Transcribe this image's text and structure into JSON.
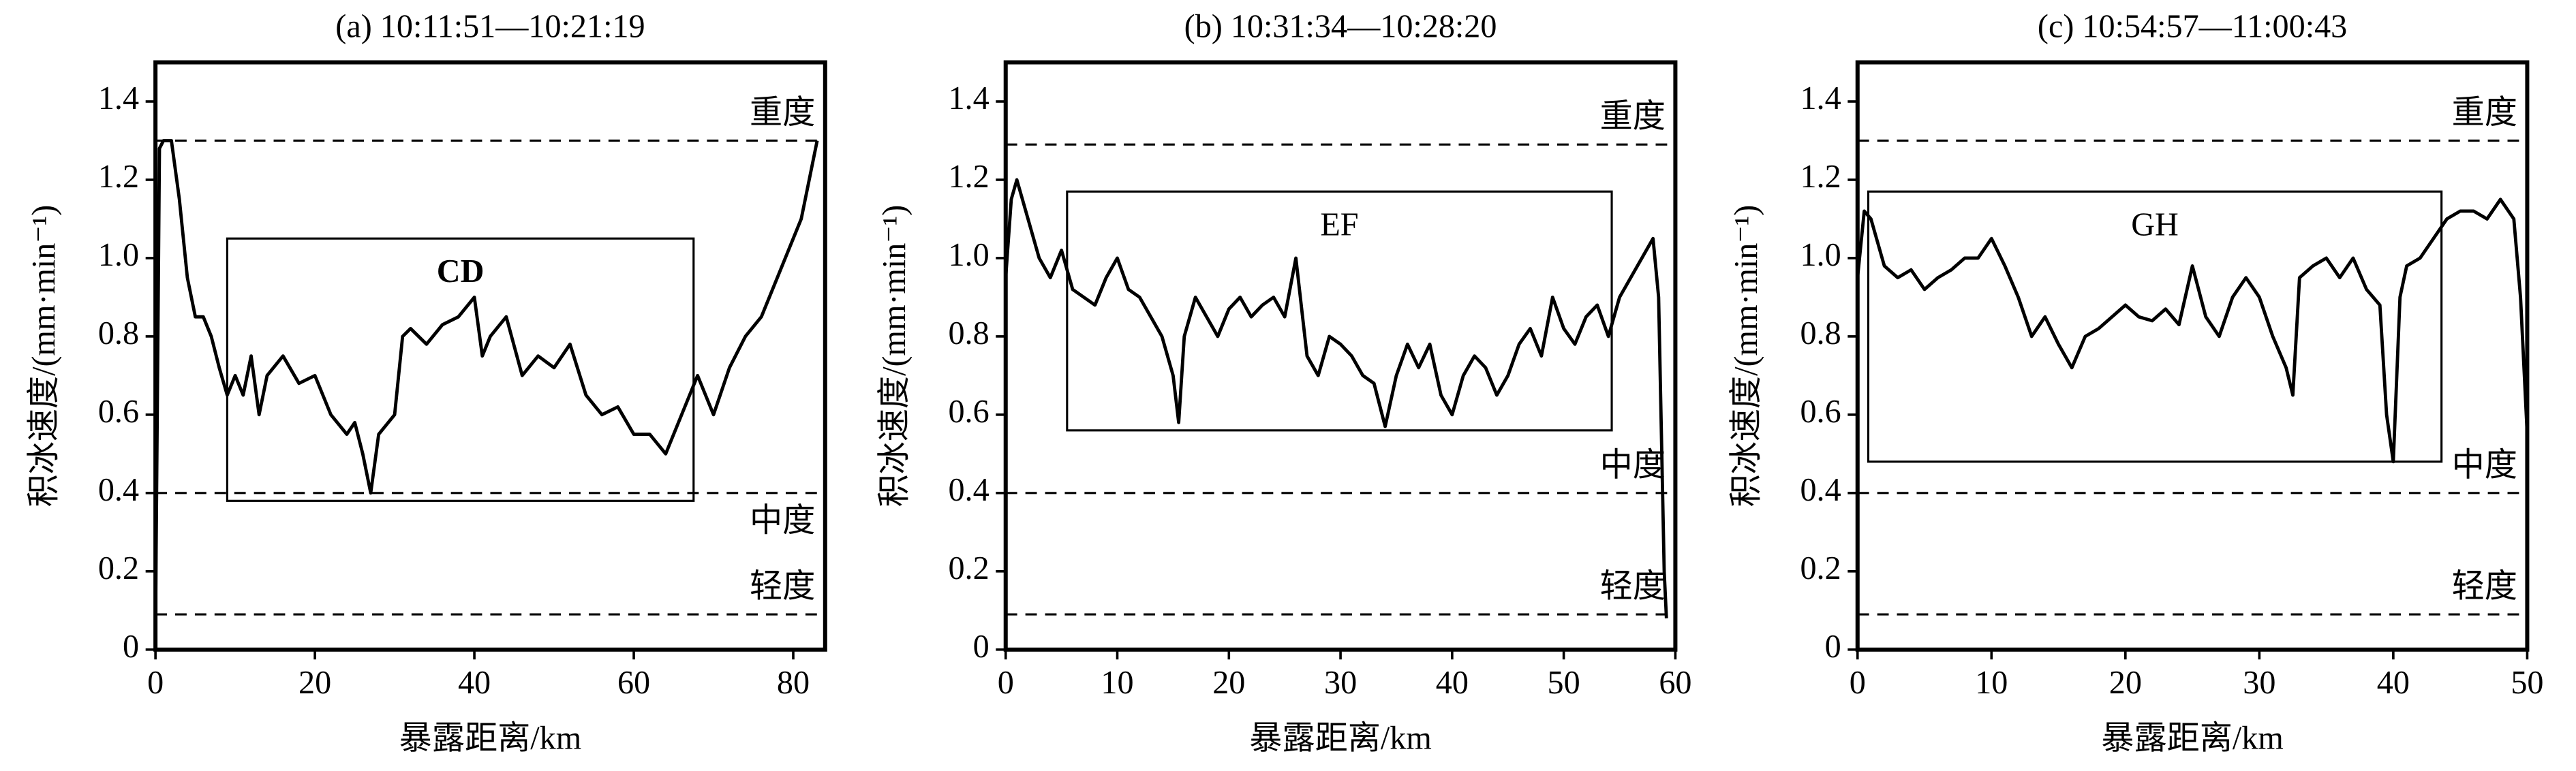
{
  "chart_data": [
    {
      "type": "line",
      "title": "(a) 10:11:51—10:21:19",
      "xlabel": "暴露距离/km",
      "ylabel": "积冰速度/(mm·min⁻¹)",
      "color": "#000000",
      "x": [
        0,
        0.5,
        1,
        2,
        3,
        4,
        5,
        6,
        7,
        8,
        9,
        10,
        11,
        12,
        13,
        14,
        16,
        18,
        20,
        22,
        24,
        25,
        26,
        27,
        28,
        30,
        31,
        32,
        34,
        36,
        38,
        40,
        41,
        42,
        44,
        46,
        48,
        50,
        52,
        54,
        56,
        58,
        60,
        62,
        64,
        66,
        68,
        70,
        72,
        74,
        76,
        78,
        80,
        81,
        82,
        83
      ],
      "values": [
        0.05,
        1.28,
        1.3,
        1.3,
        1.15,
        0.95,
        0.85,
        0.85,
        0.8,
        0.72,
        0.65,
        0.7,
        0.65,
        0.75,
        0.6,
        0.7,
        0.75,
        0.68,
        0.7,
        0.6,
        0.55,
        0.58,
        0.5,
        0.4,
        0.55,
        0.6,
        0.8,
        0.82,
        0.78,
        0.83,
        0.85,
        0.9,
        0.75,
        0.8,
        0.85,
        0.7,
        0.75,
        0.72,
        0.78,
        0.65,
        0.6,
        0.62,
        0.55,
        0.55,
        0.5,
        0.6,
        0.7,
        0.6,
        0.72,
        0.8,
        0.85,
        0.95,
        1.05,
        1.1,
        1.2,
        1.3
      ],
      "xlim": [
        0,
        84
      ],
      "xticks": [
        0,
        20,
        40,
        60,
        80
      ],
      "ylim": [
        0,
        1.5
      ],
      "yticks": [
        0,
        0.2,
        0.4,
        0.6,
        0.8,
        {
          "value": 1,
          "label": "1.0"
        },
        1.2,
        1.4
      ],
      "thresholds": [
        {
          "label": "重度",
          "value": 1.3,
          "label_side": "above"
        },
        {
          "label": "中度",
          "value": 0.4,
          "label_side": "below"
        },
        {
          "label": "轻度",
          "value": 0.09,
          "label_side": "above"
        }
      ],
      "box": {
        "label": "CD",
        "bold": true,
        "x": [
          9,
          67.5
        ],
        "y": [
          0.38,
          1.05
        ]
      }
    },
    {
      "type": "line",
      "title": "(b) 10:31:34—10:28:20",
      "xlabel": "暴露距离/km",
      "ylabel": "积冰速度/(mm·min⁻¹)",
      "color": "#000000",
      "x": [
        0,
        0.5,
        1,
        2,
        3,
        4,
        5,
        6,
        7,
        8,
        9,
        10,
        11,
        12,
        13,
        14,
        15,
        15.5,
        16,
        17,
        18,
        19,
        20,
        21,
        22,
        23,
        24,
        25,
        26,
        27,
        28,
        29,
        30,
        31,
        32,
        33,
        34,
        35,
        36,
        37,
        38,
        39,
        40,
        41,
        42,
        43,
        44,
        45,
        46,
        47,
        48,
        49,
        50,
        51,
        52,
        53,
        54,
        55,
        56,
        57,
        58,
        58.5,
        59,
        59.2
      ],
      "values": [
        0.95,
        1.15,
        1.2,
        1.1,
        1.0,
        0.95,
        1.02,
        0.92,
        0.9,
        0.88,
        0.95,
        1.0,
        0.92,
        0.9,
        0.85,
        0.8,
        0.7,
        0.58,
        0.8,
        0.9,
        0.85,
        0.8,
        0.87,
        0.9,
        0.85,
        0.88,
        0.9,
        0.85,
        1.0,
        0.75,
        0.7,
        0.8,
        0.78,
        0.75,
        0.7,
        0.68,
        0.57,
        0.7,
        0.78,
        0.72,
        0.78,
        0.65,
        0.6,
        0.7,
        0.75,
        0.72,
        0.65,
        0.7,
        0.78,
        0.82,
        0.75,
        0.9,
        0.82,
        0.78,
        0.85,
        0.88,
        0.8,
        0.9,
        0.95,
        1.0,
        1.05,
        0.9,
        0.2,
        0.08
      ],
      "xlim": [
        0,
        60
      ],
      "xticks": [
        0,
        10,
        20,
        30,
        40,
        50,
        60
      ],
      "ylim": [
        0,
        1.5
      ],
      "yticks": [
        0,
        0.2,
        0.4,
        0.6,
        0.8,
        {
          "value": 1,
          "label": "1.0"
        },
        1.2,
        1.4
      ],
      "thresholds": [
        {
          "label": "重度",
          "value": 1.29,
          "label_side": "above"
        },
        {
          "label": "中度",
          "value": 0.4,
          "label_side": "above"
        },
        {
          "label": "轻度",
          "value": 0.09,
          "label_side": "above"
        }
      ],
      "box": {
        "label": "EF",
        "bold": false,
        "x": [
          5.5,
          54.3
        ],
        "y": [
          0.56,
          1.17
        ]
      }
    },
    {
      "type": "line",
      "title": "(c) 10:54:57—11:00:43",
      "xlabel": "暴露距离/km",
      "ylabel": "积冰速度/(mm·min⁻¹)",
      "color": "#000000",
      "x": [
        0,
        0.5,
        1,
        2,
        3,
        4,
        5,
        6,
        7,
        8,
        9,
        10,
        11,
        12,
        13,
        14,
        15,
        16,
        17,
        18,
        19,
        20,
        21,
        22,
        23,
        24,
        25,
        26,
        27,
        28,
        29,
        30,
        31,
        32,
        32.5,
        33,
        34,
        35,
        36,
        37,
        38,
        39,
        39.5,
        40,
        40.5,
        41,
        42,
        43,
        44,
        45,
        46,
        47,
        48,
        49,
        49.5,
        50
      ],
      "values": [
        0.95,
        1.12,
        1.1,
        0.98,
        0.95,
        0.97,
        0.92,
        0.95,
        0.97,
        1.0,
        1.0,
        1.05,
        0.98,
        0.9,
        0.8,
        0.85,
        0.78,
        0.72,
        0.8,
        0.82,
        0.85,
        0.88,
        0.85,
        0.84,
        0.87,
        0.83,
        0.98,
        0.85,
        0.8,
        0.9,
        0.95,
        0.9,
        0.8,
        0.72,
        0.65,
        0.95,
        0.98,
        1.0,
        0.95,
        1.0,
        0.92,
        0.88,
        0.6,
        0.48,
        0.9,
        0.98,
        1.0,
        1.05,
        1.1,
        1.12,
        1.12,
        1.1,
        1.15,
        1.1,
        0.9,
        0.55
      ],
      "xlim": [
        0,
        50
      ],
      "xticks": [
        0,
        10,
        20,
        30,
        40,
        50
      ],
      "ylim": [
        0,
        1.5
      ],
      "yticks": [
        0,
        0.2,
        0.4,
        0.6,
        0.8,
        {
          "value": 1,
          "label": "1.0"
        },
        1.2,
        1.4
      ],
      "thresholds": [
        {
          "label": "重度",
          "value": 1.3,
          "label_side": "above"
        },
        {
          "label": "中度",
          "value": 0.4,
          "label_side": "above"
        },
        {
          "label": "轻度",
          "value": 0.09,
          "label_side": "above"
        }
      ],
      "box": {
        "label": "GH",
        "bold": false,
        "x": [
          0.8,
          43.6
        ],
        "y": [
          0.48,
          1.17
        ]
      }
    }
  ]
}
